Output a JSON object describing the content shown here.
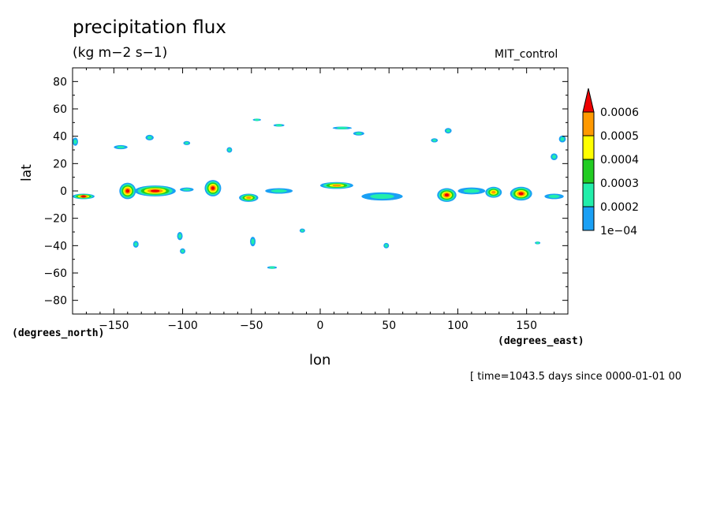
{
  "chart_data": {
    "type": "contour",
    "title": "precipitation flux",
    "units": "(kg m−2 s−1)",
    "experiment": "MIT_control",
    "xlabel": "lon",
    "ylabel": "lat",
    "xunits": "(degrees_east)",
    "yunits": "(degrees_north)",
    "time_label": "[ time=1043.5 days since 0000-01-01 00",
    "xlim": [
      -180,
      180
    ],
    "ylim": [
      -90,
      90
    ],
    "xticks": [
      -150,
      -100,
      -50,
      0,
      50,
      100,
      150
    ],
    "xtick_labels": [
      "−150",
      "−100",
      "−50",
      "0",
      "50",
      "100",
      "150"
    ],
    "yticks": [
      80,
      60,
      40,
      20,
      0,
      -20,
      -40,
      -60,
      -80
    ],
    "ytick_labels": [
      "80",
      "60",
      "40",
      "20",
      "0",
      "−20",
      "−40",
      "−60",
      "−80"
    ],
    "colorbar": {
      "levels": [
        "1e−04",
        "0.0002",
        "0.0003",
        "0.0004",
        "0.0005",
        "0.0006"
      ],
      "colors": [
        "#1aa0f5",
        "#22eeaa",
        "#22cc22",
        "#ffff00",
        "#ff9900",
        "#ee0000"
      ],
      "extend": "max"
    },
    "features": [
      {
        "lon": -172,
        "lat": -4,
        "w": 16,
        "h": 4,
        "level": 5
      },
      {
        "lon": -140,
        "lat": 0,
        "w": 12,
        "h": 12,
        "level": 5
      },
      {
        "lon": -120,
        "lat": 0,
        "w": 30,
        "h": 8,
        "level": 5
      },
      {
        "lon": -78,
        "lat": 2,
        "w": 12,
        "h": 12,
        "level": 5
      },
      {
        "lon": -52,
        "lat": -5,
        "w": 14,
        "h": 6,
        "level": 4
      },
      {
        "lon": 12,
        "lat": 4,
        "w": 24,
        "h": 5,
        "level": 4
      },
      {
        "lon": 92,
        "lat": -3,
        "w": 14,
        "h": 10,
        "level": 5
      },
      {
        "lon": 126,
        "lat": -1,
        "w": 12,
        "h": 8,
        "level": 4
      },
      {
        "lon": 146,
        "lat": -2,
        "w": 16,
        "h": 10,
        "level": 5
      },
      {
        "lon": -30,
        "lat": 0,
        "w": 20,
        "h": 4,
        "level": 1
      },
      {
        "lon": 45,
        "lat": -4,
        "w": 30,
        "h": 6,
        "level": 1
      },
      {
        "lon": 110,
        "lat": 0,
        "w": 20,
        "h": 5,
        "level": 1
      },
      {
        "lon": 170,
        "lat": -4,
        "w": 14,
        "h": 4,
        "level": 1
      },
      {
        "lon": -97,
        "lat": 1,
        "w": 10,
        "h": 3,
        "level": 1
      },
      {
        "lon": -145,
        "lat": 32,
        "w": 10,
        "h": 3,
        "level": 1
      },
      {
        "lon": -124,
        "lat": 39,
        "w": 6,
        "h": 4,
        "level": 1
      },
      {
        "lon": -97,
        "lat": 35,
        "w": 5,
        "h": 3,
        "level": 1
      },
      {
        "lon": -66,
        "lat": 30,
        "w": 4,
        "h": 4,
        "level": 1
      },
      {
        "lon": -46,
        "lat": 52,
        "w": 6,
        "h": 1,
        "level": 1
      },
      {
        "lon": -30,
        "lat": 48,
        "w": 8,
        "h": 2,
        "level": 1
      },
      {
        "lon": 16,
        "lat": 46,
        "w": 14,
        "h": 2,
        "level": 1
      },
      {
        "lon": 28,
        "lat": 42,
        "w": 8,
        "h": 3,
        "level": 1
      },
      {
        "lon": 83,
        "lat": 37,
        "w": 5,
        "h": 3,
        "level": 1
      },
      {
        "lon": 93,
        "lat": 44,
        "w": 5,
        "h": 4,
        "level": 1
      },
      {
        "lon": 176,
        "lat": 38,
        "w": 5,
        "h": 5,
        "level": 1
      },
      {
        "lon": 170,
        "lat": 25,
        "w": 5,
        "h": 5,
        "level": 1
      },
      {
        "lon": -178,
        "lat": 36,
        "w": 4,
        "h": 6,
        "level": 1
      },
      {
        "lon": -134,
        "lat": -39,
        "w": 4,
        "h": 5,
        "level": 1
      },
      {
        "lon": -102,
        "lat": -33,
        "w": 4,
        "h": 6,
        "level": 1
      },
      {
        "lon": -100,
        "lat": -44,
        "w": 4,
        "h": 4,
        "level": 1
      },
      {
        "lon": -49,
        "lat": -37,
        "w": 4,
        "h": 7,
        "level": 1
      },
      {
        "lon": -35,
        "lat": -56,
        "w": 7,
        "h": 2,
        "level": 1
      },
      {
        "lon": -13,
        "lat": -29,
        "w": 4,
        "h": 3,
        "level": 1
      },
      {
        "lon": 48,
        "lat": -40,
        "w": 4,
        "h": 4,
        "level": 1
      },
      {
        "lon": 158,
        "lat": -38,
        "w": 4,
        "h": 2,
        "level": 1
      }
    ]
  }
}
